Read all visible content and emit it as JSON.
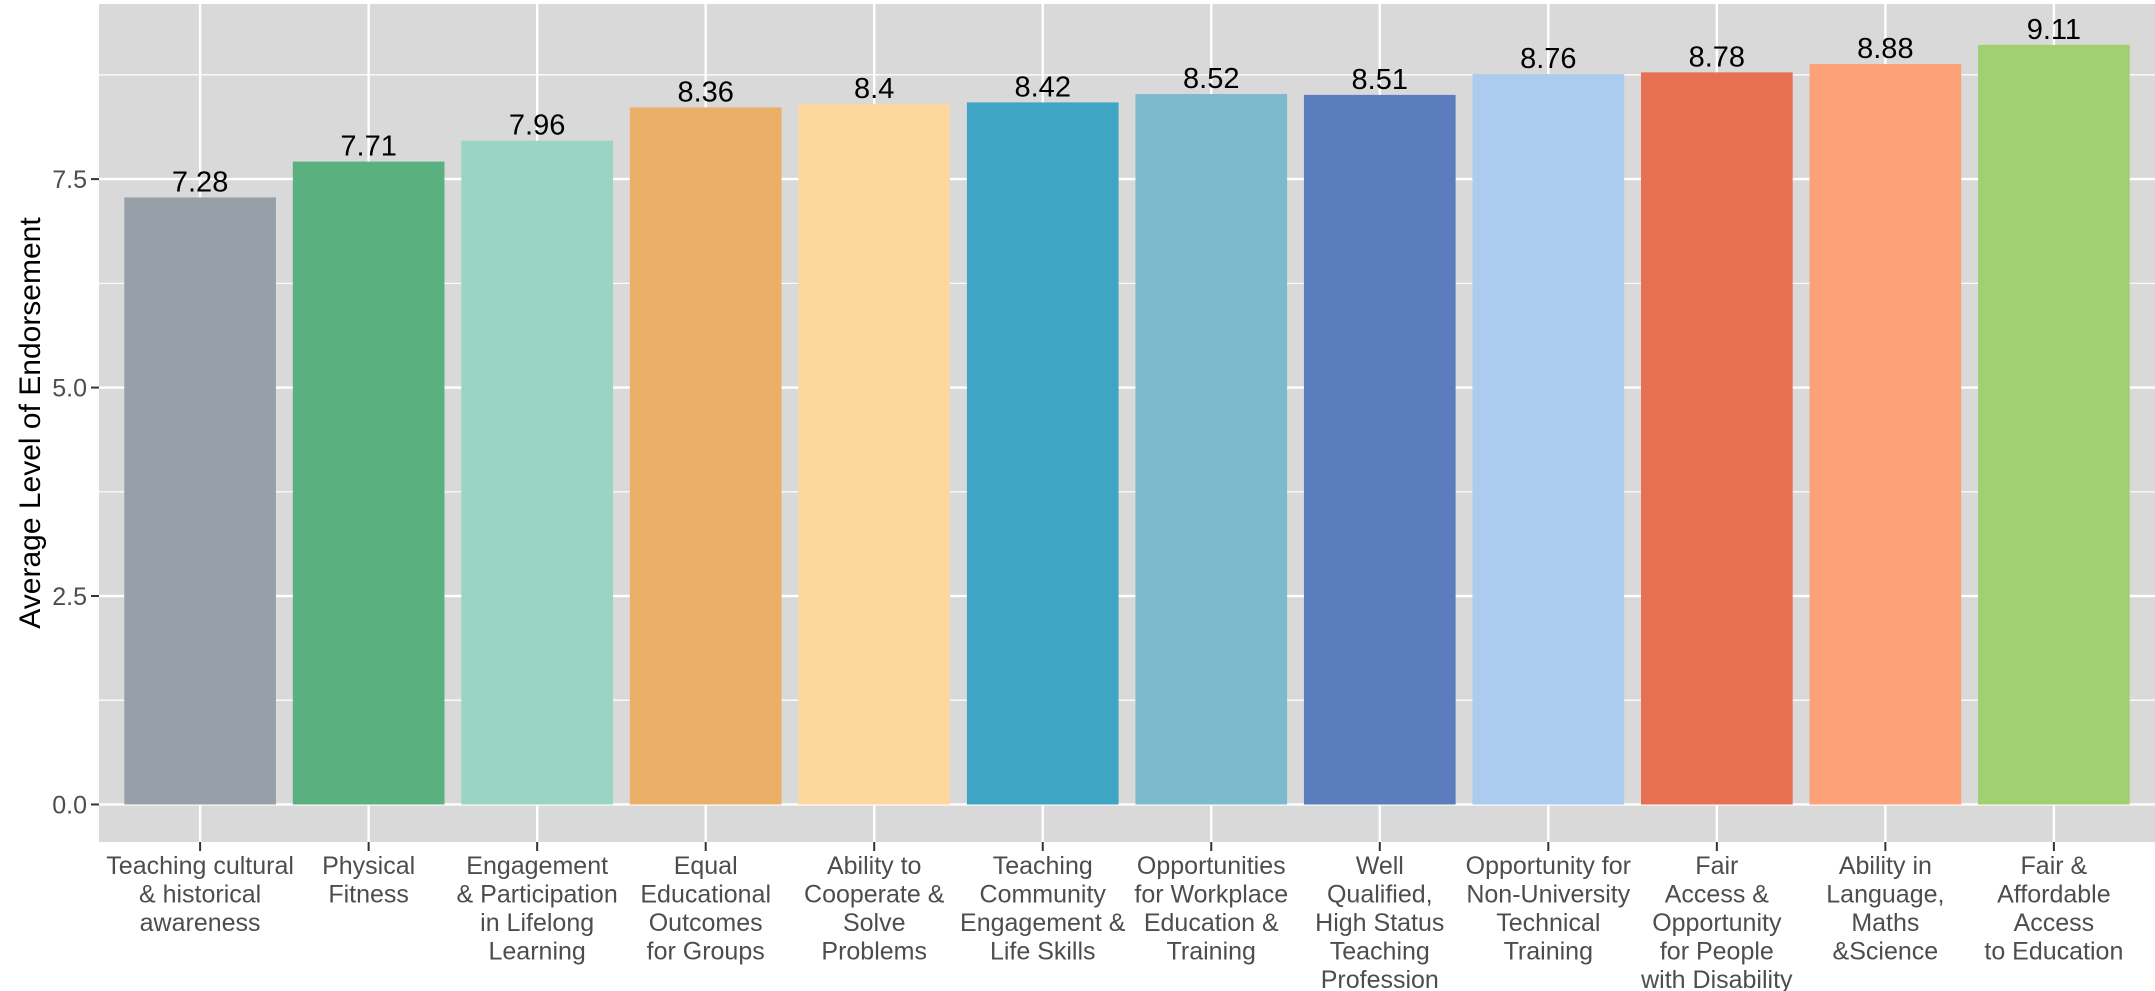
{
  "chart_data": {
    "type": "bar",
    "ylabel": "Average Level of Endorsement",
    "ylim": [
      -0.45,
      9.6
    ],
    "yticks": [
      0,
      2.5,
      5,
      7.5
    ],
    "ytick_labels": [
      "0.0",
      "2.5",
      "5.0",
      "7.5"
    ],
    "grid": true,
    "legend": "none",
    "categories": [
      [
        "Teaching cultural",
        "& historical",
        "awareness"
      ],
      [
        "Physical",
        "Fitness"
      ],
      [
        "Engagement",
        "& Participation",
        "in Lifelong",
        "Learning"
      ],
      [
        "Equal",
        "Educational",
        "Outcomes",
        "for Groups"
      ],
      [
        "Ability to",
        "Cooperate &",
        "Solve",
        "Problems"
      ],
      [
        "Teaching",
        "Community",
        "Engagement &",
        "Life Skills"
      ],
      [
        "Opportunities",
        "for Workplace",
        "Education &",
        "Training"
      ],
      [
        "Well",
        "Qualified,",
        "High Status",
        "Teaching",
        "Profession"
      ],
      [
        "Opportunity for",
        "Non-University",
        "Technical",
        "Training"
      ],
      [
        "Fair",
        "Access &",
        "Opportunity",
        "for People",
        "with Disability"
      ],
      [
        "Ability in",
        "Language,",
        "Maths",
        "&Science"
      ],
      [
        "Fair &",
        "Affordable",
        "Access",
        "to Education"
      ]
    ],
    "values": [
      7.28,
      7.71,
      7.96,
      8.36,
      8.4,
      8.42,
      8.52,
      8.51,
      8.76,
      8.78,
      8.88,
      9.11
    ],
    "value_labels": [
      "7.28",
      "7.71",
      "7.96",
      "8.36",
      "8.4",
      "8.42",
      "8.52",
      "8.51",
      "8.76",
      "8.78",
      "8.88",
      "9.11"
    ],
    "colors": [
      "#979fa9",
      "#5ab17f",
      "#9ad5c3",
      "#ebaf68",
      "#fcd89e",
      "#3ea6c4",
      "#7bbbcd",
      "#5c7dbd",
      "#acccef",
      "#e67051",
      "#fca178",
      "#a0d072"
    ],
    "panel_background": "#d9d9d9",
    "grid_color": "#ffffff"
  }
}
